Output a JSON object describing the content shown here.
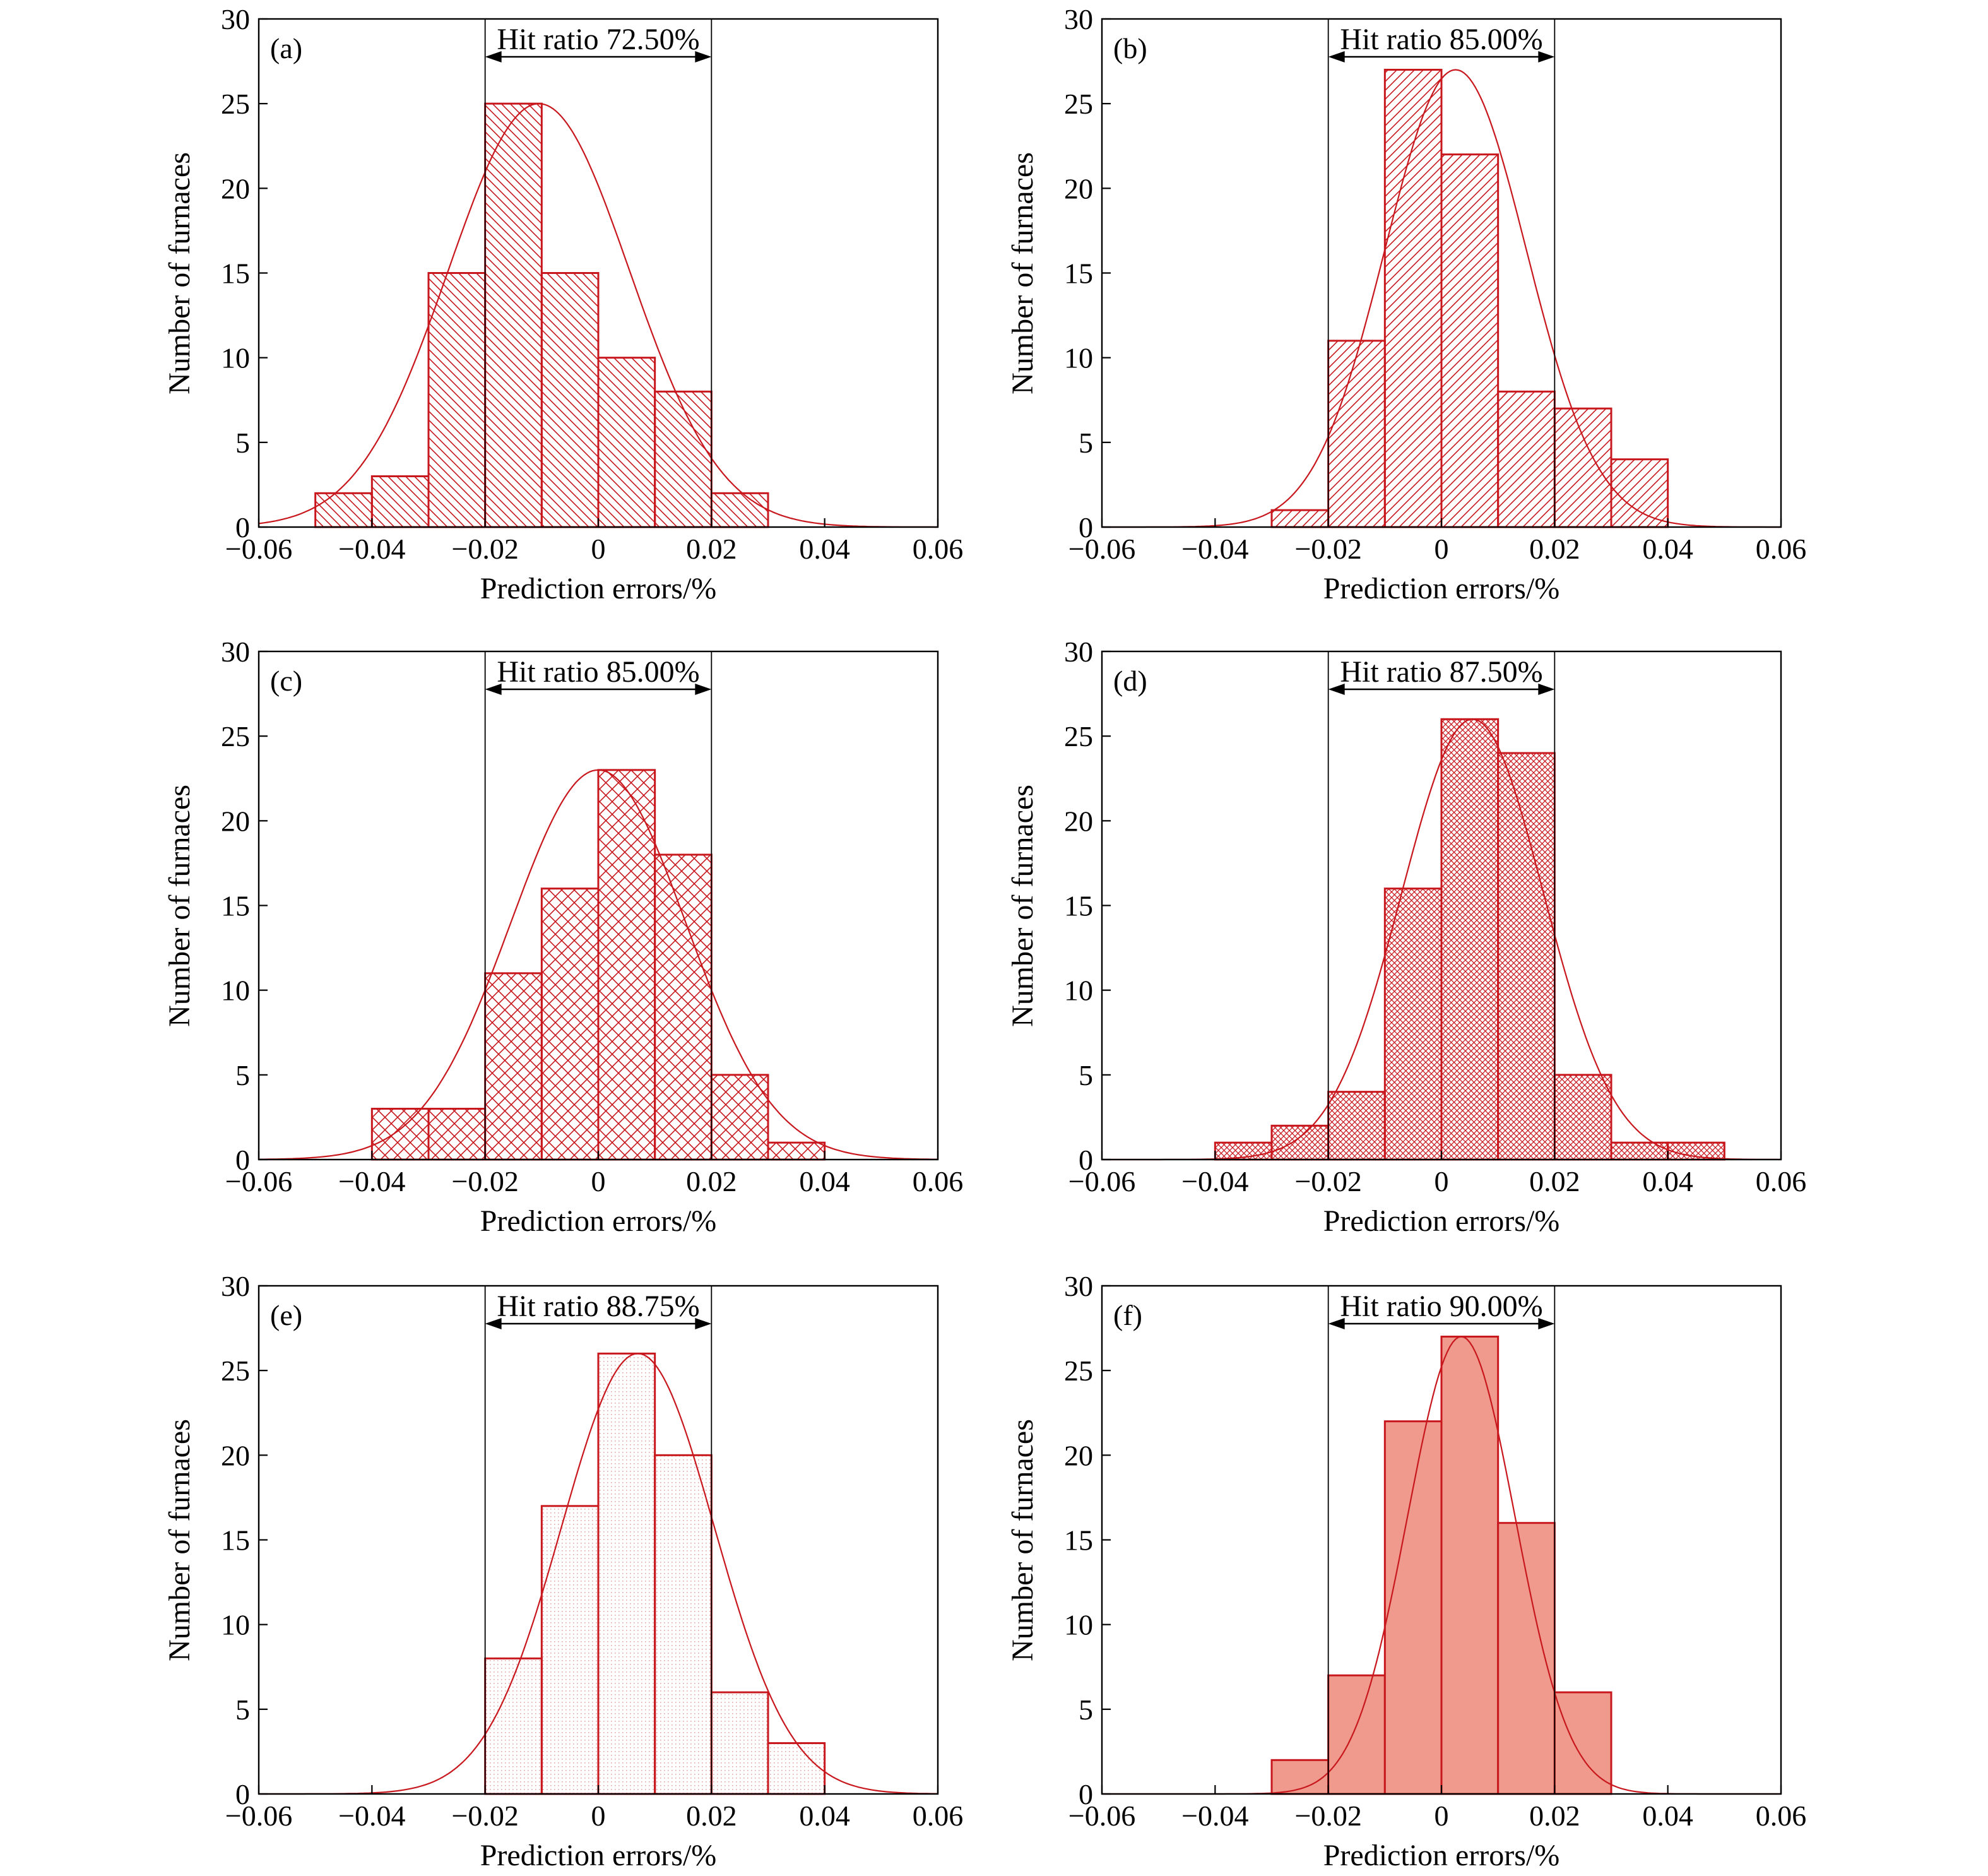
{
  "colors": {
    "bar_stroke": "#c8181e",
    "curve": "#c8181e",
    "hatch": "#c8181e",
    "solid_fill": "#ef9a8c",
    "axis": "#000000"
  },
  "chart_data": [
    {
      "type": "bar",
      "panel": "(a)",
      "hit_ratio_label": "Hit ratio 72.50%",
      "xlabel": "Prediction errors/%",
      "ylabel": "Number of furnaces",
      "xlim": [
        -0.06,
        0.06
      ],
      "ylim": [
        0,
        30
      ],
      "xticks": [
        -0.06,
        -0.04,
        -0.02,
        0,
        0.02,
        0.04,
        0.06
      ],
      "xtick_labels": [
        "−0.06",
        "−0.04",
        "−0.02",
        "0",
        "0.02",
        "0.04",
        "0.06"
      ],
      "yticks": [
        0,
        5,
        10,
        15,
        20,
        25,
        30
      ],
      "ytick_labels": [
        "0",
        "5",
        "10",
        "15",
        "20",
        "25",
        "30"
      ],
      "bin_edges": [
        -0.05,
        -0.04,
        -0.03,
        -0.02,
        -0.01,
        0,
        0.01,
        0.02,
        0.03
      ],
      "values": [
        2,
        3,
        15,
        25,
        15,
        10,
        8,
        2
      ],
      "fill": "hatch-back",
      "hit_range": [
        -0.02,
        0.02
      ],
      "fit_curve": {
        "mean": -0.0105,
        "sd": 0.016,
        "peak": 25
      }
    },
    {
      "type": "bar",
      "panel": "(b)",
      "hit_ratio_label": "Hit ratio 85.00%",
      "xlabel": "Prediction errors/%",
      "ylabel": "Number of furnaces",
      "xlim": [
        -0.06,
        0.06
      ],
      "ylim": [
        0,
        30
      ],
      "xticks": [
        -0.06,
        -0.04,
        -0.02,
        0,
        0.02,
        0.04,
        0.06
      ],
      "xtick_labels": [
        "−0.06",
        "−0.04",
        "−0.02",
        "0",
        "0.02",
        "0.04",
        "0.06"
      ],
      "yticks": [
        0,
        5,
        10,
        15,
        20,
        25,
        30
      ],
      "ytick_labels": [
        "0",
        "5",
        "10",
        "15",
        "20",
        "25",
        "30"
      ],
      "bin_edges": [
        -0.03,
        -0.02,
        -0.01,
        0,
        0.01,
        0.02,
        0.03,
        0.04
      ],
      "values": [
        1,
        11,
        27,
        22,
        8,
        7,
        4
      ],
      "fill": "hatch-fwd",
      "hit_range": [
        -0.02,
        0.02
      ],
      "fit_curve": {
        "mean": 0.0025,
        "sd": 0.0125,
        "peak": 27
      }
    },
    {
      "type": "bar",
      "panel": "(c)",
      "hit_ratio_label": "Hit ratio 85.00%",
      "xlabel": "Prediction errors/%",
      "ylabel": "Number of furnaces",
      "xlim": [
        -0.06,
        0.06
      ],
      "ylim": [
        0,
        30
      ],
      "xticks": [
        -0.06,
        -0.04,
        -0.02,
        0,
        0.02,
        0.04,
        0.06
      ],
      "xtick_labels": [
        "−0.06",
        "−0.04",
        "−0.02",
        "0",
        "0.02",
        "0.04",
        "0.06"
      ],
      "yticks": [
        0,
        5,
        10,
        15,
        20,
        25,
        30
      ],
      "ytick_labels": [
        "0",
        "5",
        "10",
        "15",
        "20",
        "25",
        "30"
      ],
      "bin_edges": [
        -0.04,
        -0.03,
        -0.02,
        -0.01,
        0,
        0.01,
        0.02,
        0.03,
        0.04
      ],
      "values": [
        3,
        3,
        11,
        16,
        23,
        18,
        5,
        1
      ],
      "fill": "hatch-cross",
      "hit_range": [
        -0.02,
        0.02
      ],
      "fit_curve": {
        "mean": 0.0,
        "sd": 0.0155,
        "peak": 23
      }
    },
    {
      "type": "bar",
      "panel": "(d)",
      "hit_ratio_label": "Hit ratio 87.50%",
      "xlabel": "Prediction errors/%",
      "ylabel": "Number of furnaces",
      "xlim": [
        -0.06,
        0.06
      ],
      "ylim": [
        0,
        30
      ],
      "xticks": [
        -0.06,
        -0.04,
        -0.02,
        0,
        0.02,
        0.04,
        0.06
      ],
      "xtick_labels": [
        "−0.06",
        "−0.04",
        "−0.02",
        "0",
        "0.02",
        "0.04",
        "0.06"
      ],
      "yticks": [
        0,
        5,
        10,
        15,
        20,
        25,
        30
      ],
      "ytick_labels": [
        "0",
        "5",
        "10",
        "15",
        "20",
        "25",
        "30"
      ],
      "bin_edges": [
        -0.04,
        -0.03,
        -0.02,
        -0.01,
        0,
        0.01,
        0.02,
        0.03,
        0.04,
        0.05
      ],
      "values": [
        1,
        2,
        4,
        16,
        26,
        24,
        5,
        1,
        1
      ],
      "fill": "hatch-dense",
      "hit_range": [
        -0.02,
        0.02
      ],
      "fit_curve": {
        "mean": 0.0055,
        "sd": 0.0125,
        "peak": 26
      }
    },
    {
      "type": "bar",
      "panel": "(e)",
      "hit_ratio_label": "Hit ratio 88.75%",
      "xlabel": "Prediction errors/%",
      "ylabel": "Number of furnaces",
      "xlim": [
        -0.06,
        0.06
      ],
      "ylim": [
        0,
        30
      ],
      "xticks": [
        -0.06,
        -0.04,
        -0.02,
        0,
        0.02,
        0.04,
        0.06
      ],
      "xtick_labels": [
        "−0.06",
        "−0.04",
        "−0.02",
        "0",
        "0.02",
        "0.04",
        "0.06"
      ],
      "yticks": [
        0,
        5,
        10,
        15,
        20,
        25,
        30
      ],
      "ytick_labels": [
        "0",
        "5",
        "10",
        "15",
        "20",
        "25",
        "30"
      ],
      "bin_edges": [
        -0.02,
        -0.01,
        0,
        0.01,
        0.02,
        0.03,
        0.04
      ],
      "values": [
        8,
        17,
        26,
        20,
        6,
        3
      ],
      "fill": "dots",
      "hit_range": [
        -0.02,
        0.02
      ],
      "fit_curve": {
        "mean": 0.007,
        "sd": 0.0135,
        "peak": 26
      }
    },
    {
      "type": "bar",
      "panel": "(f)",
      "hit_ratio_label": "Hit ratio 90.00%",
      "xlabel": "Prediction errors/%",
      "ylabel": "Number of furnaces",
      "xlim": [
        -0.06,
        0.06
      ],
      "ylim": [
        0,
        30
      ],
      "xticks": [
        -0.06,
        -0.04,
        -0.02,
        0,
        0.02,
        0.04,
        0.06
      ],
      "xtick_labels": [
        "−0.06",
        "−0.04",
        "−0.02",
        "0",
        "0.02",
        "0.04",
        "0.06"
      ],
      "yticks": [
        0,
        5,
        10,
        15,
        20,
        25,
        30
      ],
      "ytick_labels": [
        "0",
        "5",
        "10",
        "15",
        "20",
        "25",
        "30"
      ],
      "bin_edges": [
        -0.03,
        -0.02,
        -0.01,
        0,
        0.01,
        0.02,
        0.03
      ],
      "values": [
        2,
        7,
        22,
        27,
        16,
        6
      ],
      "fill": "solid",
      "hit_range": [
        -0.02,
        0.02
      ],
      "fit_curve": {
        "mean": 0.0035,
        "sd": 0.0095,
        "peak": 27
      }
    }
  ]
}
